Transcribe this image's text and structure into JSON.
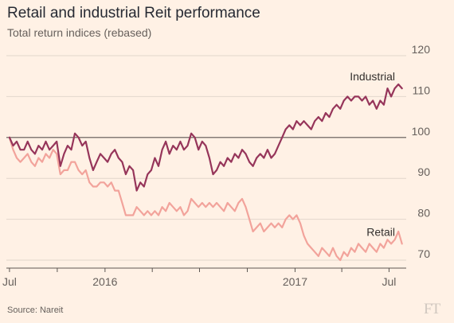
{
  "header": {
    "title": "Retail and industrial Reit performance",
    "subtitle": "Total return indices (rebased)"
  },
  "footer": {
    "source": "Source: Nareit",
    "logo": "FT"
  },
  "colors": {
    "background": "#fff1e5",
    "industrial": "#96355a",
    "retail": "#f2a39b",
    "grid": "#e2d6cc",
    "baseline": "#5c5653",
    "text": "#66605c"
  },
  "chart_data": {
    "type": "line",
    "title": "Retail and industrial Reit performance",
    "subtitle": "Total return indices (rebased)",
    "xlabel": "",
    "ylabel": "",
    "ylim": [
      70,
      120
    ],
    "yticks": [
      70,
      80,
      90,
      100,
      110,
      120
    ],
    "reference_line": 100,
    "grid": true,
    "x_ticks": [
      {
        "date": "2015-07-01",
        "label": "Jul"
      },
      {
        "date": "2015-10-01",
        "label": ""
      },
      {
        "date": "2016-01-01",
        "label": "2016"
      },
      {
        "date": "2016-04-01",
        "label": ""
      },
      {
        "date": "2016-07-01",
        "label": ""
      },
      {
        "date": "2016-10-01",
        "label": ""
      },
      {
        "date": "2017-01-01",
        "label": "2017"
      },
      {
        "date": "2017-04-01",
        "label": ""
      },
      {
        "date": "2017-07-01",
        "label": "Jul"
      }
    ],
    "x_range": [
      "2015-06-25",
      "2017-07-31"
    ],
    "series": [
      {
        "name": "Industrial",
        "color": "#96355a",
        "points": [
          [
            "2015-07-01",
            100
          ],
          [
            "2015-07-08",
            98
          ],
          [
            "2015-07-15",
            99
          ],
          [
            "2015-07-22",
            97
          ],
          [
            "2015-07-29",
            97
          ],
          [
            "2015-08-05",
            99
          ],
          [
            "2015-08-12",
            97
          ],
          [
            "2015-08-19",
            96
          ],
          [
            "2015-08-26",
            98
          ],
          [
            "2015-09-02",
            97
          ],
          [
            "2015-09-09",
            99
          ],
          [
            "2015-09-16",
            97
          ],
          [
            "2015-09-23",
            98
          ],
          [
            "2015-09-30",
            99
          ],
          [
            "2015-10-07",
            93
          ],
          [
            "2015-10-14",
            96
          ],
          [
            "2015-10-21",
            98
          ],
          [
            "2015-10-28",
            97
          ],
          [
            "2015-11-04",
            101
          ],
          [
            "2015-11-11",
            100
          ],
          [
            "2015-11-18",
            98
          ],
          [
            "2015-11-25",
            99
          ],
          [
            "2015-12-02",
            95
          ],
          [
            "2015-12-09",
            92
          ],
          [
            "2015-12-16",
            94
          ],
          [
            "2015-12-23",
            96
          ],
          [
            "2015-12-30",
            95
          ],
          [
            "2016-01-06",
            94
          ],
          [
            "2016-01-13",
            96
          ],
          [
            "2016-01-20",
            97
          ],
          [
            "2016-01-27",
            95
          ],
          [
            "2016-02-03",
            94
          ],
          [
            "2016-02-10",
            91
          ],
          [
            "2016-02-17",
            93
          ],
          [
            "2016-02-24",
            92
          ],
          [
            "2016-03-02",
            87
          ],
          [
            "2016-03-09",
            89
          ],
          [
            "2016-03-16",
            88
          ],
          [
            "2016-03-23",
            91
          ],
          [
            "2016-03-30",
            92
          ],
          [
            "2016-04-06",
            95
          ],
          [
            "2016-04-13",
            93
          ],
          [
            "2016-04-20",
            97
          ],
          [
            "2016-04-27",
            99
          ],
          [
            "2016-05-04",
            96
          ],
          [
            "2016-05-11",
            98
          ],
          [
            "2016-05-18",
            97
          ],
          [
            "2016-05-25",
            99
          ],
          [
            "2016-06-01",
            97
          ],
          [
            "2016-06-08",
            98
          ],
          [
            "2016-06-15",
            101
          ],
          [
            "2016-06-22",
            100
          ],
          [
            "2016-06-29",
            97
          ],
          [
            "2016-07-06",
            99
          ],
          [
            "2016-07-13",
            98
          ],
          [
            "2016-07-20",
            95
          ],
          [
            "2016-07-27",
            91
          ],
          [
            "2016-08-03",
            92
          ],
          [
            "2016-08-10",
            94
          ],
          [
            "2016-08-17",
            93
          ],
          [
            "2016-08-24",
            95
          ],
          [
            "2016-08-31",
            94
          ],
          [
            "2016-09-07",
            96
          ],
          [
            "2016-09-14",
            95
          ],
          [
            "2016-09-21",
            97
          ],
          [
            "2016-09-28",
            96
          ],
          [
            "2016-10-05",
            94
          ],
          [
            "2016-10-12",
            93
          ],
          [
            "2016-10-19",
            95
          ],
          [
            "2016-10-26",
            96
          ],
          [
            "2016-11-02",
            95
          ],
          [
            "2016-11-09",
            97
          ],
          [
            "2016-11-16",
            95
          ],
          [
            "2016-11-23",
            96
          ],
          [
            "2016-11-30",
            98
          ],
          [
            "2016-12-07",
            100
          ],
          [
            "2016-12-14",
            102
          ],
          [
            "2016-12-21",
            103
          ],
          [
            "2016-12-28",
            102
          ],
          [
            "2017-01-04",
            104
          ],
          [
            "2017-01-11",
            103
          ],
          [
            "2017-01-18",
            104
          ],
          [
            "2017-01-25",
            103
          ],
          [
            "2017-02-01",
            102
          ],
          [
            "2017-02-08",
            104
          ],
          [
            "2017-02-15",
            105
          ],
          [
            "2017-02-22",
            104
          ],
          [
            "2017-03-01",
            106
          ],
          [
            "2017-03-08",
            105
          ],
          [
            "2017-03-15",
            107
          ],
          [
            "2017-03-22",
            108
          ],
          [
            "2017-03-29",
            107
          ],
          [
            "2017-04-05",
            109
          ],
          [
            "2017-04-12",
            110
          ],
          [
            "2017-04-19",
            109
          ],
          [
            "2017-04-26",
            110
          ],
          [
            "2017-05-03",
            110
          ],
          [
            "2017-05-10",
            109
          ],
          [
            "2017-05-17",
            110
          ],
          [
            "2017-05-24",
            108
          ],
          [
            "2017-05-31",
            109
          ],
          [
            "2017-06-07",
            107
          ],
          [
            "2017-06-14",
            109
          ],
          [
            "2017-06-21",
            108
          ],
          [
            "2017-06-28",
            112
          ],
          [
            "2017-07-05",
            110
          ],
          [
            "2017-07-12",
            112
          ],
          [
            "2017-07-19",
            113
          ],
          [
            "2017-07-26",
            112
          ]
        ]
      },
      {
        "name": "Retail",
        "color": "#f2a39b",
        "points": [
          [
            "2015-07-01",
            100
          ],
          [
            "2015-07-08",
            97
          ],
          [
            "2015-07-15",
            95
          ],
          [
            "2015-07-22",
            94
          ],
          [
            "2015-07-29",
            95
          ],
          [
            "2015-08-05",
            96
          ],
          [
            "2015-08-12",
            94
          ],
          [
            "2015-08-19",
            93
          ],
          [
            "2015-08-26",
            95
          ],
          [
            "2015-09-02",
            94
          ],
          [
            "2015-09-09",
            96
          ],
          [
            "2015-09-16",
            95
          ],
          [
            "2015-09-23",
            97
          ],
          [
            "2015-09-30",
            96
          ],
          [
            "2015-10-07",
            91
          ],
          [
            "2015-10-14",
            92
          ],
          [
            "2015-10-21",
            92
          ],
          [
            "2015-10-28",
            94
          ],
          [
            "2015-11-04",
            94
          ],
          [
            "2015-11-11",
            92
          ],
          [
            "2015-11-18",
            91
          ],
          [
            "2015-11-25",
            92
          ],
          [
            "2015-12-02",
            89
          ],
          [
            "2015-12-09",
            88
          ],
          [
            "2015-12-16",
            88
          ],
          [
            "2015-12-23",
            89
          ],
          [
            "2015-12-30",
            89
          ],
          [
            "2016-01-06",
            88
          ],
          [
            "2016-01-13",
            89
          ],
          [
            "2016-01-20",
            87
          ],
          [
            "2016-01-27",
            87
          ],
          [
            "2016-02-03",
            84
          ],
          [
            "2016-02-10",
            81
          ],
          [
            "2016-02-17",
            81
          ],
          [
            "2016-02-24",
            81
          ],
          [
            "2016-03-02",
            83
          ],
          [
            "2016-03-09",
            82
          ],
          [
            "2016-03-16",
            81
          ],
          [
            "2016-03-23",
            82
          ],
          [
            "2016-03-30",
            81
          ],
          [
            "2016-04-06",
            82
          ],
          [
            "2016-04-13",
            81
          ],
          [
            "2016-04-20",
            83
          ],
          [
            "2016-04-27",
            82
          ],
          [
            "2016-05-04",
            84
          ],
          [
            "2016-05-11",
            83
          ],
          [
            "2016-05-18",
            82
          ],
          [
            "2016-05-25",
            83
          ],
          [
            "2016-06-01",
            81
          ],
          [
            "2016-06-08",
            82
          ],
          [
            "2016-06-15",
            85
          ],
          [
            "2016-06-22",
            84
          ],
          [
            "2016-06-29",
            83
          ],
          [
            "2016-07-06",
            84
          ],
          [
            "2016-07-13",
            83
          ],
          [
            "2016-07-20",
            84
          ],
          [
            "2016-07-27",
            83
          ],
          [
            "2016-08-03",
            84
          ],
          [
            "2016-08-10",
            83
          ],
          [
            "2016-08-17",
            82
          ],
          [
            "2016-08-24",
            84
          ],
          [
            "2016-08-31",
            83
          ],
          [
            "2016-09-07",
            82
          ],
          [
            "2016-09-14",
            84
          ],
          [
            "2016-09-21",
            85
          ],
          [
            "2016-09-28",
            83
          ],
          [
            "2016-10-05",
            80
          ],
          [
            "2016-10-12",
            77
          ],
          [
            "2016-10-19",
            78
          ],
          [
            "2016-10-26",
            79
          ],
          [
            "2016-11-02",
            77
          ],
          [
            "2016-11-09",
            78
          ],
          [
            "2016-11-16",
            79
          ],
          [
            "2016-11-23",
            78
          ],
          [
            "2016-11-30",
            79
          ],
          [
            "2016-12-07",
            78
          ],
          [
            "2016-12-14",
            80
          ],
          [
            "2016-12-21",
            81
          ],
          [
            "2016-12-28",
            80
          ],
          [
            "2017-01-04",
            81
          ],
          [
            "2017-01-11",
            79
          ],
          [
            "2017-01-18",
            76
          ],
          [
            "2017-01-25",
            74
          ],
          [
            "2017-02-01",
            73
          ],
          [
            "2017-02-08",
            72
          ],
          [
            "2017-02-15",
            71
          ],
          [
            "2017-02-22",
            73
          ],
          [
            "2017-03-01",
            72
          ],
          [
            "2017-03-08",
            71
          ],
          [
            "2017-03-15",
            73
          ],
          [
            "2017-03-22",
            71
          ],
          [
            "2017-03-29",
            70
          ],
          [
            "2017-04-05",
            72
          ],
          [
            "2017-04-12",
            71
          ],
          [
            "2017-04-19",
            73
          ],
          [
            "2017-04-26",
            72
          ],
          [
            "2017-05-03",
            74
          ],
          [
            "2017-05-10",
            73
          ],
          [
            "2017-05-17",
            72
          ],
          [
            "2017-05-24",
            74
          ],
          [
            "2017-05-31",
            73
          ],
          [
            "2017-06-07",
            72
          ],
          [
            "2017-06-14",
            74
          ],
          [
            "2017-06-21",
            73
          ],
          [
            "2017-06-28",
            75
          ],
          [
            "2017-07-05",
            74
          ],
          [
            "2017-07-12",
            75
          ],
          [
            "2017-07-19",
            77
          ],
          [
            "2017-07-26",
            74
          ]
        ]
      }
    ]
  }
}
